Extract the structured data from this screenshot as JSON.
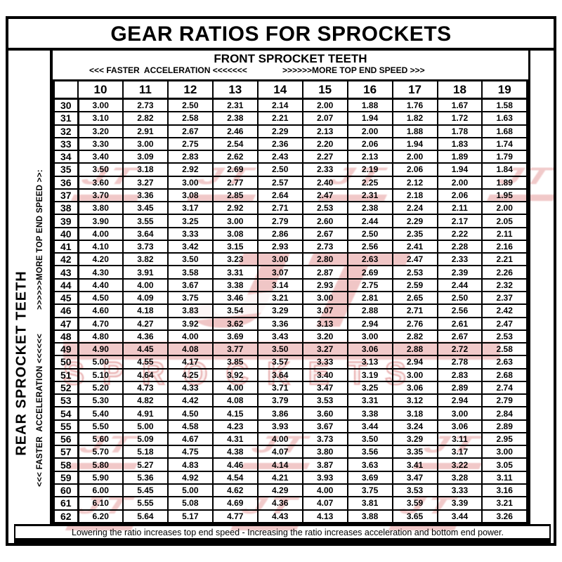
{
  "title": "GEAR RATIOS FOR SPROCKETS",
  "front_header": {
    "label": "FRONT SPROCKET TEETH",
    "left_hint": "<<< FASTER  ACCELERATION <<<<<<<",
    "right_hint": ">>>>>>MORE TOP END SPEED >>>"
  },
  "side_header": {
    "label": "REAR SPROCKET TEETH",
    "hint_bottom": "<<< FASTER  ACCELERATION <<<<<<",
    "hint_top": ">>>>>>MORE TOP END SPEED >>:"
  },
  "footnote": "Lowering the ratio increases top end speed - Increasing the ratio increases acceleration and bottom end power.",
  "watermark": {
    "logo_text": "JT",
    "brand_text": "SPROCKETS",
    "color": "#d86060"
  },
  "table": {
    "corner": "",
    "col_headers": [
      "10",
      "11",
      "12",
      "13",
      "14",
      "15",
      "16",
      "17",
      "18",
      "19"
    ],
    "rows": [
      {
        "rear": "30",
        "values": [
          "3.00",
          "2.73",
          "2.50",
          "2.31",
          "2.14",
          "2.00",
          "1.88",
          "1.76",
          "1.67",
          "1.58"
        ]
      },
      {
        "rear": "31",
        "values": [
          "3.10",
          "2.82",
          "2.58",
          "2.38",
          "2.21",
          "2.07",
          "1.94",
          "1.82",
          "1.72",
          "1.63"
        ]
      },
      {
        "rear": "32",
        "values": [
          "3.20",
          "2.91",
          "2.67",
          "2.46",
          "2.29",
          "2.13",
          "2.00",
          "1.88",
          "1.78",
          "1.68"
        ]
      },
      {
        "rear": "33",
        "values": [
          "3.30",
          "3.00",
          "2.75",
          "2.54",
          "2.36",
          "2.20",
          "2.06",
          "1.94",
          "1.83",
          "1.74"
        ]
      },
      {
        "rear": "34",
        "values": [
          "3.40",
          "3.09",
          "2.83",
          "2.62",
          "2.43",
          "2.27",
          "2.13",
          "2.00",
          "1.89",
          "1.79"
        ]
      },
      {
        "rear": "35",
        "values": [
          "3.50",
          "3.18",
          "2.92",
          "2.69",
          "2.50",
          "2.33",
          "2.19",
          "2.06",
          "1.94",
          "1.84"
        ]
      },
      {
        "rear": "36",
        "values": [
          "3.60",
          "3.27",
          "3.00",
          "2.77",
          "2.57",
          "2.40",
          "2.25",
          "2.12",
          "2.00",
          "1.89"
        ]
      },
      {
        "rear": "37",
        "values": [
          "3.70",
          "3.36",
          "3.08",
          "2.85",
          "2.64",
          "2.47",
          "2.31",
          "2.18",
          "2.06",
          "1.95"
        ]
      },
      {
        "rear": "38",
        "values": [
          "3.80",
          "3.45",
          "3.17",
          "2.92",
          "2.71",
          "2.53",
          "2.38",
          "2.24",
          "2.11",
          "2.00"
        ]
      },
      {
        "rear": "39",
        "values": [
          "3.90",
          "3.55",
          "3.25",
          "3.00",
          "2.79",
          "2.60",
          "2.44",
          "2.29",
          "2.17",
          "2.05"
        ]
      },
      {
        "rear": "40",
        "values": [
          "4.00",
          "3.64",
          "3.33",
          "3.08",
          "2.86",
          "2.67",
          "2.50",
          "2.35",
          "2.22",
          "2.11"
        ]
      },
      {
        "rear": "41",
        "values": [
          "4.10",
          "3.73",
          "3.42",
          "3.15",
          "2.93",
          "2.73",
          "2.56",
          "2.41",
          "2.28",
          "2.16"
        ]
      },
      {
        "rear": "42",
        "values": [
          "4.20",
          "3.82",
          "3.50",
          "3.23",
          "3.00",
          "2.80",
          "2.63",
          "2.47",
          "2.33",
          "2.21"
        ]
      },
      {
        "rear": "43",
        "values": [
          "4.30",
          "3.91",
          "3.58",
          "3.31",
          "3.07",
          "2.87",
          "2.69",
          "2.53",
          "2.39",
          "2.26"
        ]
      },
      {
        "rear": "44",
        "values": [
          "4.40",
          "4.00",
          "3.67",
          "3.38",
          "3.14",
          "2.93",
          "2.75",
          "2.59",
          "2.44",
          "2.32"
        ]
      },
      {
        "rear": "45",
        "values": [
          "4.50",
          "4.09",
          "3.75",
          "3.46",
          "3.21",
          "3.00",
          "2.81",
          "2.65",
          "2.50",
          "2.37"
        ]
      },
      {
        "rear": "46",
        "values": [
          "4.60",
          "4.18",
          "3.83",
          "3.54",
          "3.29",
          "3.07",
          "2.88",
          "2.71",
          "2.56",
          "2.42"
        ]
      },
      {
        "rear": "47",
        "values": [
          "4.70",
          "4.27",
          "3.92",
          "3.62",
          "3.36",
          "3.13",
          "2.94",
          "2.76",
          "2.61",
          "2.47"
        ]
      },
      {
        "rear": "48",
        "values": [
          "4.80",
          "4.36",
          "4.00",
          "3.69",
          "3.43",
          "3.20",
          "3.00",
          "2.82",
          "2.67",
          "2.53"
        ]
      },
      {
        "rear": "49",
        "values": [
          "4.90",
          "4.45",
          "4.08",
          "3.77",
          "3.50",
          "3.27",
          "3.06",
          "2.88",
          "2.72",
          "2.58"
        ]
      },
      {
        "rear": "50",
        "values": [
          "5.00",
          "4.55",
          "4.17",
          "3.85",
          "3.57",
          "3.33",
          "3.13",
          "2.94",
          "2.78",
          "2.63"
        ]
      },
      {
        "rear": "51",
        "values": [
          "5.10",
          "4.64",
          "4.25",
          "3.92",
          "3.64",
          "3.40",
          "3.19",
          "3.00",
          "2.83",
          "2.68"
        ]
      },
      {
        "rear": "52",
        "values": [
          "5.20",
          "4.73",
          "4.33",
          "4.00",
          "3.71",
          "3.47",
          "3.25",
          "3.06",
          "2.89",
          "2.74"
        ]
      },
      {
        "rear": "53",
        "values": [
          "5.30",
          "4.82",
          "4.42",
          "4.08",
          "3.79",
          "3.53",
          "3.31",
          "3.12",
          "2.94",
          "2.79"
        ]
      },
      {
        "rear": "54",
        "values": [
          "5.40",
          "4.91",
          "4.50",
          "4.15",
          "3.86",
          "3.60",
          "3.38",
          "3.18",
          "3.00",
          "2.84"
        ]
      },
      {
        "rear": "55",
        "values": [
          "5.50",
          "5.00",
          "4.58",
          "4.23",
          "3.93",
          "3.67",
          "3.44",
          "3.24",
          "3.06",
          "2.89"
        ]
      },
      {
        "rear": "56",
        "values": [
          "5.60",
          "5.09",
          "4.67",
          "4.31",
          "4.00",
          "3.73",
          "3.50",
          "3.29",
          "3.11",
          "2.95"
        ]
      },
      {
        "rear": "57",
        "values": [
          "5.70",
          "5.18",
          "4.75",
          "4.38",
          "4.07",
          "3.80",
          "3.56",
          "3.35",
          "3.17",
          "3.00"
        ]
      },
      {
        "rear": "58",
        "values": [
          "5.80",
          "5.27",
          "4.83",
          "4.46",
          "4.14",
          "3.87",
          "3.63",
          "3.41",
          "3.22",
          "3.05"
        ]
      },
      {
        "rear": "59",
        "values": [
          "5.90",
          "5.36",
          "4.92",
          "4.54",
          "4.21",
          "3.93",
          "3.69",
          "3.47",
          "3.28",
          "3.11"
        ]
      },
      {
        "rear": "60",
        "values": [
          "6.00",
          "5.45",
          "5.00",
          "4.62",
          "4.29",
          "4.00",
          "3.75",
          "3.53",
          "3.33",
          "3.16"
        ]
      },
      {
        "rear": "61",
        "values": [
          "6.10",
          "5.55",
          "5.08",
          "4.69",
          "4.36",
          "4.07",
          "3.81",
          "3.59",
          "3.39",
          "3.21"
        ]
      },
      {
        "rear": "62",
        "values": [
          "6.20",
          "5.64",
          "5.17",
          "4.77",
          "4.43",
          "4.13",
          "3.88",
          "3.65",
          "3.44",
          "3.26"
        ]
      }
    ]
  }
}
